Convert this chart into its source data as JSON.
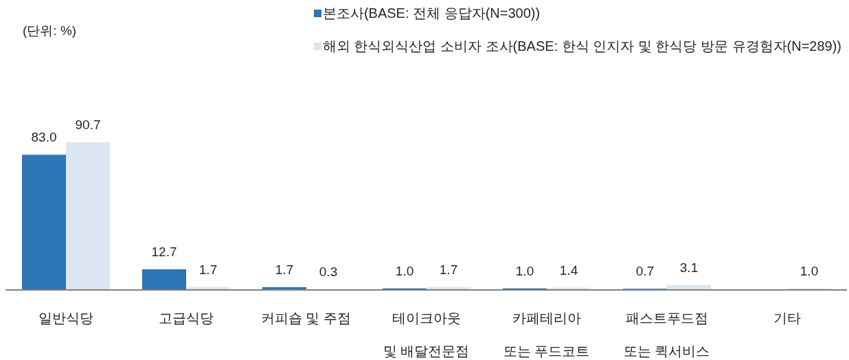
{
  "chart_data": {
    "type": "bar",
    "annotations": [
      "(단위: %)"
    ],
    "categories": [
      "일반식당",
      "고급식당",
      "커피숍 및 주점",
      "테이크아웃\n및 배달전문점",
      "카페테리아\n또는 푸드코트",
      "패스트푸드점\n또는 퀵서비스",
      "기타"
    ],
    "series": [
      {
        "name": "본조사(BASE: 전체 응답자(N=300))",
        "color": "#2e75b6",
        "values": [
          83.0,
          12.7,
          1.7,
          1.0,
          1.0,
          0.7,
          null
        ],
        "value_labels": [
          "83.0",
          "12.7",
          "1.7",
          "1.0",
          "1.0",
          "0.7",
          null
        ]
      },
      {
        "name": "해외 한식외식산업 소비자 조사(BASE: 한식 인지자 및 한식당 방문 유경험자(N=289))",
        "color": "#dce6f2",
        "values": [
          90.7,
          1.7,
          0.3,
          1.7,
          1.4,
          3.1,
          1.0
        ],
        "value_labels": [
          "90.7",
          "1.7",
          "0.3",
          "1.7",
          "1.4",
          "3.1",
          "1.0"
        ]
      }
    ],
    "legend": "top right"
  }
}
